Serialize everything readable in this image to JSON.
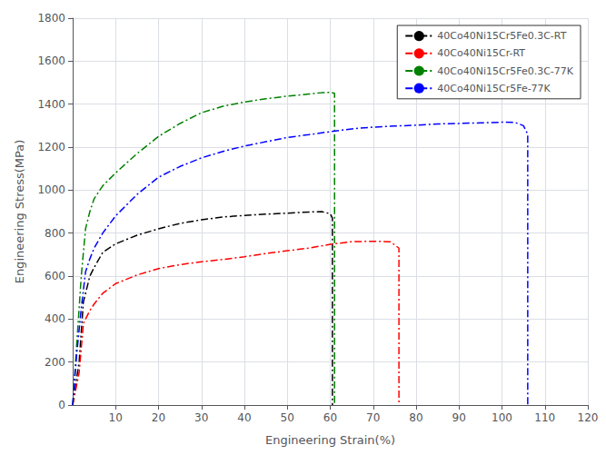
{
  "chart_data": {
    "type": "line",
    "xlabel": "Engineering Strain(%)",
    "ylabel": "Engineering Stress(MPa)",
    "xlim": [
      0,
      120
    ],
    "ylim": [
      0,
      1800
    ],
    "xticks": [
      10,
      20,
      30,
      40,
      50,
      60,
      70,
      80,
      90,
      100,
      110,
      120
    ],
    "yticks": [
      0,
      200,
      400,
      600,
      800,
      1000,
      1200,
      1400,
      1600,
      1800
    ],
    "grid": true,
    "legend": "upper right",
    "series": [
      {
        "name": "40Co40Ni15Cr5Fe0.3C-RT",
        "color": "black",
        "line_style": "dashdot",
        "x": [
          0,
          1.5,
          2.5,
          4,
          5,
          7,
          10,
          15,
          20,
          25,
          30,
          35,
          40,
          45,
          50,
          55,
          58,
          60,
          60.5,
          60.5
        ],
        "values": [
          0,
          200,
          480,
          600,
          640,
          710,
          750,
          790,
          820,
          845,
          862,
          875,
          882,
          888,
          893,
          898,
          900,
          890,
          870,
          0
        ]
      },
      {
        "name": "40Co40Ni15Cr-RT",
        "color": "red",
        "line_style": "dashdot",
        "x": [
          0,
          1.5,
          2.5,
          4,
          5,
          7,
          10,
          15,
          20,
          25,
          30,
          35,
          40,
          45,
          50,
          55,
          60,
          65,
          70,
          74,
          76,
          76
        ],
        "values": [
          0,
          150,
          380,
          440,
          470,
          520,
          565,
          605,
          635,
          653,
          667,
          677,
          690,
          705,
          718,
          730,
          748,
          760,
          762,
          760,
          730,
          0
        ]
      },
      {
        "name": "40Co40Ni15Cr5Fe0.3C-77K",
        "color": "green",
        "line_style": "dashdot",
        "x": [
          0,
          1.0,
          2.0,
          3.0,
          4,
          5,
          7,
          10,
          15,
          20,
          25,
          30,
          35,
          40,
          45,
          50,
          55,
          58,
          60,
          61,
          61
        ],
        "values": [
          0,
          300,
          600,
          820,
          900,
          960,
          1020,
          1080,
          1170,
          1250,
          1310,
          1360,
          1390,
          1410,
          1425,
          1437,
          1447,
          1453,
          1455,
          1450,
          0
        ]
      },
      {
        "name": "40Co40Ni15Cr5Fe-77K",
        "color": "blue",
        "line_style": "dashdot",
        "x": [
          0,
          1.0,
          2.0,
          3.0,
          4,
          5,
          7,
          10,
          15,
          20,
          25,
          30,
          35,
          40,
          45,
          50,
          55,
          60,
          65,
          70,
          75,
          80,
          85,
          90,
          95,
          100,
          103,
          105,
          106,
          106
        ],
        "values": [
          0,
          250,
          450,
          620,
          680,
          730,
          800,
          880,
          980,
          1060,
          1110,
          1150,
          1180,
          1205,
          1225,
          1245,
          1258,
          1272,
          1285,
          1293,
          1298,
          1302,
          1308,
          1310,
          1313,
          1316,
          1315,
          1300,
          1260,
          0
        ]
      }
    ]
  }
}
